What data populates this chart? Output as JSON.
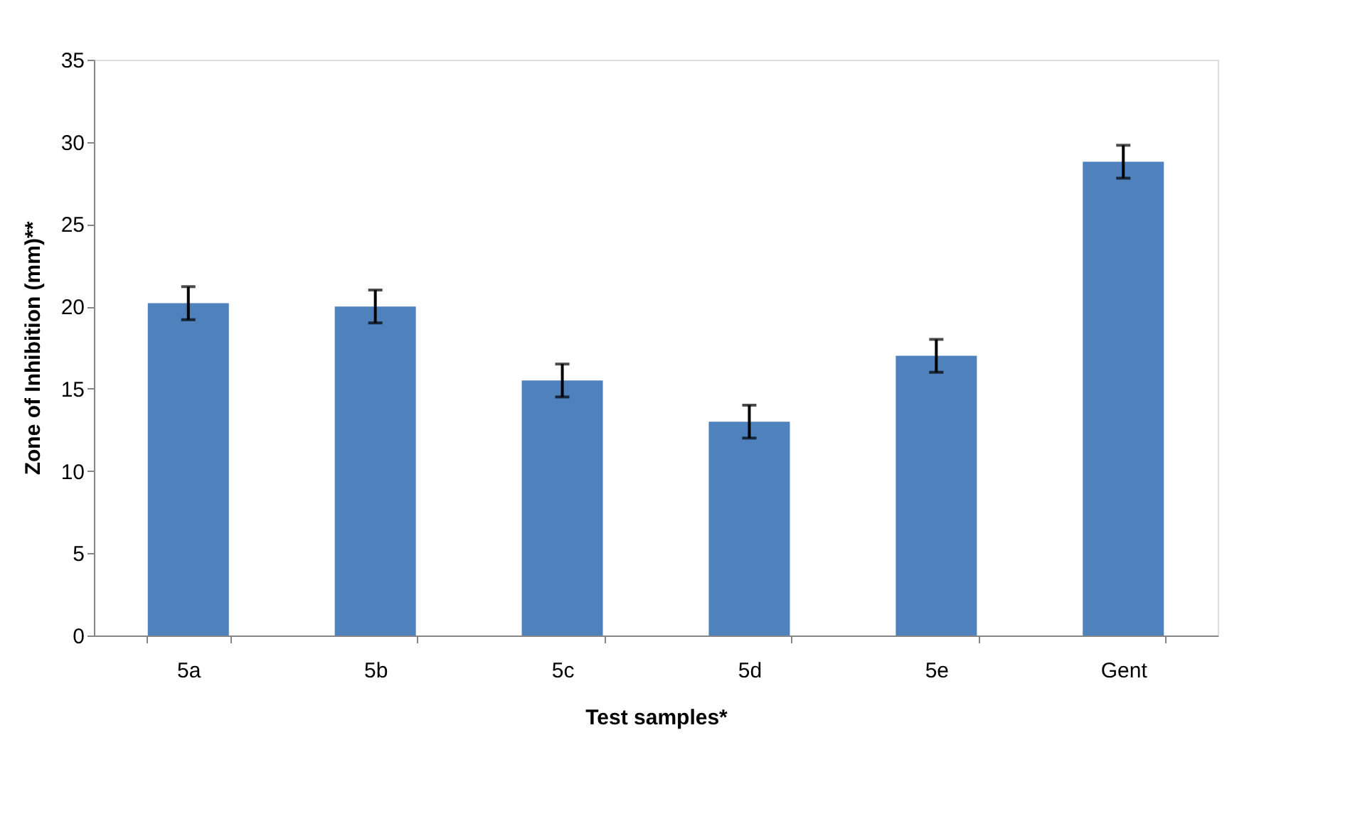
{
  "chart_data": {
    "type": "bar",
    "xlabel": "Test samples*",
    "ylabel": "Zone of Inhibition (mm)**",
    "categories": [
      "5a",
      "5b",
      "5c",
      "5d",
      "5e",
      "Gent"
    ],
    "values": [
      20.2,
      20.0,
      15.5,
      13.0,
      17.0,
      28.8
    ],
    "errors": [
      1,
      1,
      1,
      1,
      1,
      1
    ],
    "color": "#4f81bd",
    "ylim": [
      0,
      35
    ],
    "yticks": [
      0,
      5,
      10,
      15,
      20,
      25,
      30,
      35
    ],
    "grid": false
  }
}
